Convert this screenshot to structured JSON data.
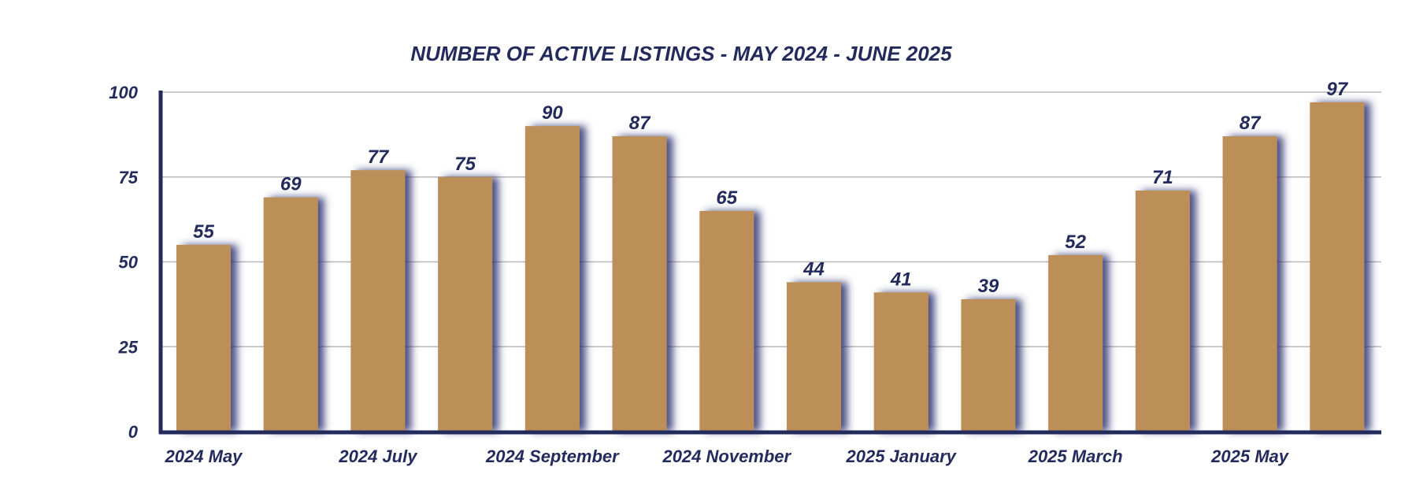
{
  "chart_data": {
    "type": "bar",
    "title": "NUMBER OF ACTIVE LISTINGS - MAY 2024 -  JUNE 2025",
    "values": [
      55,
      69,
      77,
      75,
      90,
      87,
      65,
      44,
      41,
      39,
      52,
      71,
      87,
      97
    ],
    "x_tick_labels": [
      "2024 May",
      "2024 July",
      "2024 September",
      "2024 November",
      "2025 January",
      "2025 March",
      "2025 May"
    ],
    "x_tick_label_bar_index": [
      0,
      2,
      4,
      6,
      8,
      10,
      12
    ],
    "y_ticks": [
      0,
      25,
      50,
      75,
      100
    ],
    "ylim": [
      0,
      100
    ],
    "xlabel": "",
    "ylabel": "",
    "grid": true,
    "legend": "none",
    "colors": {
      "bar": "#bd8f58",
      "bar_shadow": "#2a2f6e",
      "axis": "#232a5c",
      "text": "#232a5c",
      "grid": "#b8b8b8"
    }
  }
}
